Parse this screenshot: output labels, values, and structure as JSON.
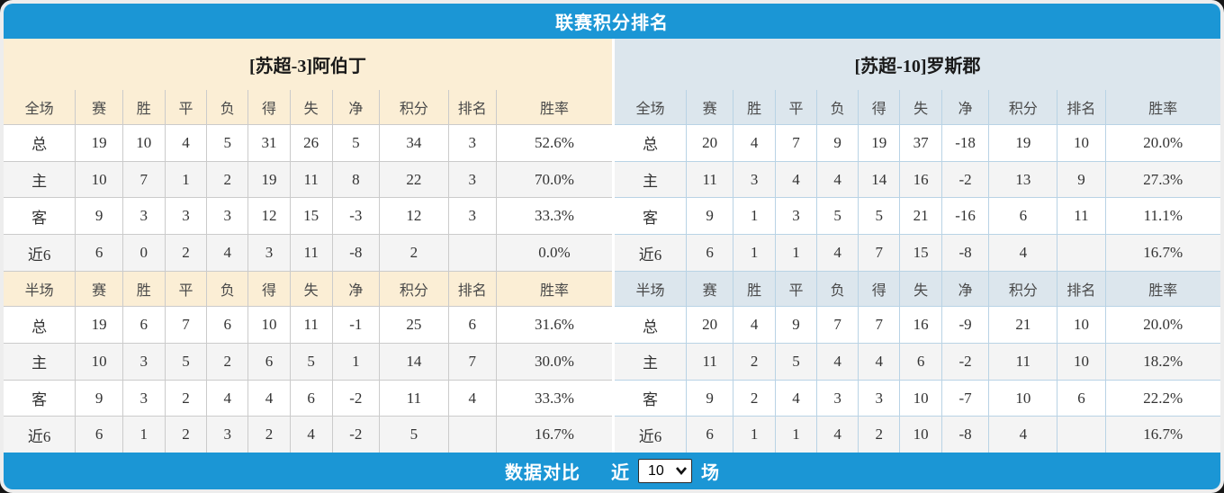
{
  "header": {
    "title": "联赛积分排名"
  },
  "footer": {
    "compare_label": "数据对比",
    "near_label": "近",
    "matches_label": "场",
    "select_value": "10"
  },
  "columns_full": [
    "全场",
    "赛",
    "胜",
    "平",
    "负",
    "得",
    "失",
    "净",
    "积分",
    "排名",
    "胜率"
  ],
  "columns_half": [
    "半场",
    "赛",
    "胜",
    "平",
    "负",
    "得",
    "失",
    "净",
    "积分",
    "排名",
    "胜率"
  ],
  "colors": {
    "bar_blue": "#1b96d5",
    "cream_bg": "#fbeed5",
    "blue_bg": "#dce6ed",
    "points_red": "#f5432b",
    "rank_blue": "#3a88da",
    "home_red": "#e8423c",
    "away_violet": "#6666ee"
  },
  "teams": [
    {
      "title": "[苏超-3]阿伯丁",
      "theme": "cream",
      "full_rows": [
        {
          "label": "总",
          "type": "total",
          "values": [
            "19",
            "10",
            "4",
            "5",
            "31",
            "26",
            "5",
            "34",
            "3",
            "52.6%"
          ]
        },
        {
          "label": "主",
          "type": "home",
          "values": [
            "10",
            "7",
            "1",
            "2",
            "19",
            "11",
            "8",
            "22",
            "3",
            "70.0%"
          ]
        },
        {
          "label": "客",
          "type": "away",
          "values": [
            "9",
            "3",
            "3",
            "3",
            "12",
            "15",
            "-3",
            "12",
            "3",
            "33.3%"
          ]
        },
        {
          "label": "近6",
          "type": "near6",
          "values": [
            "6",
            "0",
            "2",
            "4",
            "3",
            "11",
            "-8",
            "2",
            "",
            "0.0%"
          ]
        }
      ],
      "half_rows": [
        {
          "label": "总",
          "type": "total",
          "values": [
            "19",
            "6",
            "7",
            "6",
            "10",
            "11",
            "-1",
            "25",
            "6",
            "31.6%"
          ]
        },
        {
          "label": "主",
          "type": "home",
          "values": [
            "10",
            "3",
            "5",
            "2",
            "6",
            "5",
            "1",
            "14",
            "7",
            "30.0%"
          ]
        },
        {
          "label": "客",
          "type": "away",
          "values": [
            "9",
            "3",
            "2",
            "4",
            "4",
            "6",
            "-2",
            "11",
            "4",
            "33.3%"
          ]
        },
        {
          "label": "近6",
          "type": "near6",
          "values": [
            "6",
            "1",
            "2",
            "3",
            "2",
            "4",
            "-2",
            "5",
            "",
            "16.7%"
          ]
        }
      ]
    },
    {
      "title": "[苏超-10]罗斯郡",
      "theme": "blue",
      "full_rows": [
        {
          "label": "总",
          "type": "total",
          "values": [
            "20",
            "4",
            "7",
            "9",
            "19",
            "37",
            "-18",
            "19",
            "10",
            "20.0%"
          ]
        },
        {
          "label": "主",
          "type": "home",
          "values": [
            "11",
            "3",
            "4",
            "4",
            "14",
            "16",
            "-2",
            "13",
            "9",
            "27.3%"
          ]
        },
        {
          "label": "客",
          "type": "away",
          "values": [
            "9",
            "1",
            "3",
            "5",
            "5",
            "21",
            "-16",
            "6",
            "11",
            "11.1%"
          ]
        },
        {
          "label": "近6",
          "type": "near6",
          "values": [
            "6",
            "1",
            "1",
            "4",
            "7",
            "15",
            "-8",
            "4",
            "",
            "16.7%"
          ]
        }
      ],
      "half_rows": [
        {
          "label": "总",
          "type": "total",
          "values": [
            "20",
            "4",
            "9",
            "7",
            "7",
            "16",
            "-9",
            "21",
            "10",
            "20.0%"
          ]
        },
        {
          "label": "主",
          "type": "home",
          "values": [
            "11",
            "2",
            "5",
            "4",
            "4",
            "6",
            "-2",
            "11",
            "10",
            "18.2%"
          ]
        },
        {
          "label": "客",
          "type": "away",
          "values": [
            "9",
            "2",
            "4",
            "3",
            "3",
            "10",
            "-7",
            "10",
            "6",
            "22.2%"
          ]
        },
        {
          "label": "近6",
          "type": "near6",
          "values": [
            "6",
            "1",
            "1",
            "4",
            "2",
            "10",
            "-8",
            "4",
            "",
            "16.7%"
          ]
        }
      ]
    }
  ]
}
